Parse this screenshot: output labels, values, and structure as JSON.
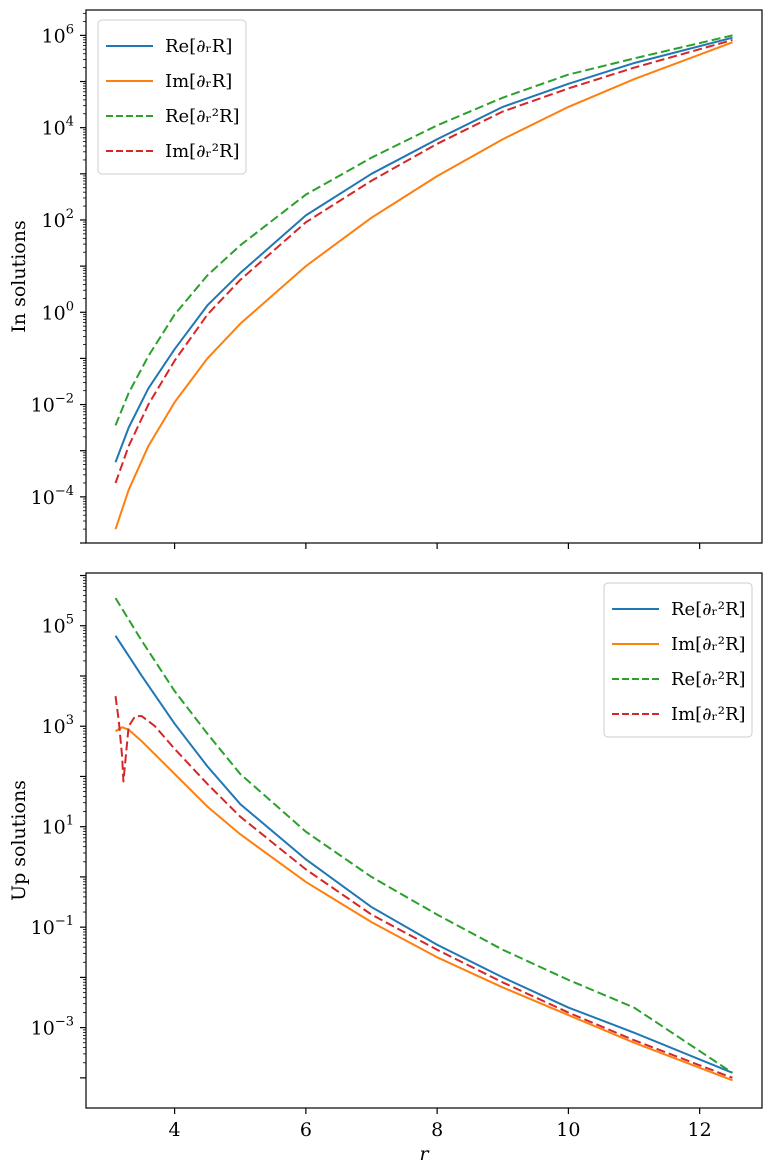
{
  "chart_data": [
    {
      "type": "line",
      "ylabel": "In solutions",
      "xlabel": "",
      "xlim": [
        2.65,
        12.95
      ],
      "ylim_exp": [
        -5.0,
        6.55
      ],
      "yscale": "log",
      "xticks": [
        4,
        6,
        8,
        10,
        12
      ],
      "show_xtick_labels": false,
      "yticks": [
        {
          "exp": -4,
          "base": "10",
          "sup": "−4"
        },
        {
          "exp": -2,
          "base": "10",
          "sup": "−2"
        },
        {
          "exp": 0,
          "base": "10",
          "sup": "0"
        },
        {
          "exp": 2,
          "base": "10",
          "sup": "2"
        },
        {
          "exp": 4,
          "base": "10",
          "sup": "4"
        },
        {
          "exp": 6,
          "base": "10",
          "sup": "6"
        }
      ],
      "legend_position": "upper left",
      "series": [
        {
          "name": "Re[∂ᵣR]",
          "color": "#1f77b4",
          "dash": "solid",
          "x": [
            3.1,
            3.3,
            3.6,
            4.0,
            4.5,
            5.0,
            6.0,
            7.0,
            8.0,
            9.0,
            10.0,
            11.0,
            12.5
          ],
          "log10_y": [
            -3.25,
            -2.5,
            -1.65,
            -0.8,
            0.15,
            0.85,
            2.1,
            3.0,
            3.75,
            4.45,
            4.95,
            5.4,
            5.95
          ]
        },
        {
          "name": "Im[∂ᵣR]",
          "color": "#ff7f0e",
          "dash": "solid",
          "x": [
            3.1,
            3.3,
            3.6,
            4.0,
            4.5,
            5.0,
            6.0,
            7.0,
            8.0,
            9.0,
            10.0,
            11.0,
            12.5
          ],
          "log10_y": [
            -4.7,
            -3.85,
            -2.9,
            -1.95,
            -1.0,
            -0.25,
            1.0,
            2.05,
            2.95,
            3.75,
            4.45,
            5.05,
            5.85
          ]
        },
        {
          "name": "Re[∂ᵣ²R]",
          "color": "#2ca02c",
          "dash": "dashed",
          "x": [
            3.1,
            3.3,
            3.6,
            4.0,
            4.5,
            5.0,
            6.0,
            7.0,
            8.0,
            9.0,
            10.0,
            11.0,
            12.5
          ],
          "log10_y": [
            -2.45,
            -1.75,
            -0.95,
            -0.05,
            0.8,
            1.45,
            2.55,
            3.35,
            4.05,
            4.65,
            5.15,
            5.5,
            6.0
          ]
        },
        {
          "name": "Im[∂ᵣ²R]",
          "color": "#d62728",
          "dash": "dashed",
          "x": [
            3.1,
            3.3,
            3.6,
            4.0,
            4.5,
            5.0,
            6.0,
            7.0,
            8.0,
            9.0,
            10.0,
            11.0,
            12.5
          ],
          "log10_y": [
            -3.7,
            -2.9,
            -2.0,
            -1.05,
            -0.05,
            0.7,
            1.95,
            2.85,
            3.65,
            4.35,
            4.85,
            5.3,
            5.9
          ]
        }
      ]
    },
    {
      "type": "line",
      "ylabel": "Up solutions",
      "xlabel": "r",
      "xlim": [
        2.65,
        12.95
      ],
      "ylim_exp": [
        -4.6,
        6.05
      ],
      "yscale": "log",
      "xticks": [
        4,
        6,
        8,
        10,
        12
      ],
      "show_xtick_labels": true,
      "yticks": [
        {
          "exp": -3,
          "base": "10",
          "sup": "−3"
        },
        {
          "exp": -1,
          "base": "10",
          "sup": "−1"
        },
        {
          "exp": 1,
          "base": "10",
          "sup": "1"
        },
        {
          "exp": 3,
          "base": "10",
          "sup": "3"
        },
        {
          "exp": 5,
          "base": "10",
          "sup": "5"
        }
      ],
      "legend_position": "upper right",
      "series": [
        {
          "name": "Re[∂ᵣ²R]",
          "color": "#1f77b4",
          "dash": "solid",
          "x": [
            3.1,
            3.5,
            4.0,
            4.5,
            5.0,
            6.0,
            7.0,
            8.0,
            9.0,
            10.0,
            11.0,
            12.5
          ],
          "log10_y": [
            4.8,
            4.0,
            3.05,
            2.2,
            1.45,
            0.35,
            -0.6,
            -1.35,
            -2.0,
            -2.6,
            -3.1,
            -3.9
          ]
        },
        {
          "name": "Im[∂ᵣ²R]",
          "color": "#ff7f0e",
          "dash": "solid",
          "x": [
            3.1,
            3.2,
            3.3,
            3.5,
            4.0,
            4.5,
            5.0,
            6.0,
            7.0,
            8.0,
            9.0,
            10.0,
            11.0,
            12.5
          ],
          "log10_y": [
            2.9,
            2.98,
            2.93,
            2.7,
            2.05,
            1.4,
            0.85,
            -0.1,
            -0.9,
            -1.6,
            -2.2,
            -2.75,
            -3.3,
            -4.05
          ]
        },
        {
          "name": "Re[∂ᵣ²R]",
          "color": "#2ca02c",
          "dash": "dashed",
          "x": [
            3.1,
            3.5,
            4.0,
            4.5,
            5.0,
            6.0,
            7.0,
            8.0,
            9.0,
            10.0,
            11.0,
            12.5
          ],
          "log10_y": [
            5.55,
            4.7,
            3.7,
            2.85,
            2.05,
            0.9,
            0.0,
            -0.75,
            -1.45,
            -2.05,
            -2.6,
            -3.9
          ]
        },
        {
          "name": "Im[∂ᵣ²R]",
          "color": "#d62728",
          "dash": "dashed",
          "x": [
            3.1,
            3.15,
            3.2,
            3.22,
            3.3,
            3.4,
            3.5,
            3.7,
            4.0,
            4.5,
            5.0,
            6.0,
            7.0,
            8.0,
            9.0,
            10.0,
            11.0,
            12.5
          ],
          "log10_y": [
            3.6,
            3.1,
            2.4,
            1.9,
            3.0,
            3.2,
            3.2,
            3.0,
            2.55,
            1.85,
            1.2,
            0.15,
            -0.75,
            -1.45,
            -2.1,
            -2.7,
            -3.25,
            -4.0
          ]
        }
      ]
    }
  ]
}
